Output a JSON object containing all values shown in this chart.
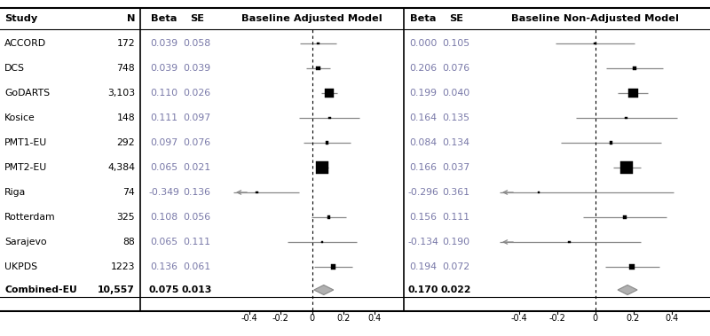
{
  "studies": [
    "ACCORD",
    "DCS",
    "GoDARTS",
    "Kosice",
    "PMT1-EU",
    "PMT2-EU",
    "Riga",
    "Rotterdam",
    "Sarajevo",
    "UKPDS",
    "Combined-EU"
  ],
  "n_values": [
    "172",
    "748",
    "3,103",
    "148",
    "292",
    "4,384",
    "74",
    "325",
    "88",
    "1223",
    "10,557"
  ],
  "adj_beta": [
    0.039,
    0.039,
    0.11,
    0.111,
    0.097,
    0.065,
    -0.349,
    0.108,
    0.065,
    0.136,
    0.075
  ],
  "adj_se": [
    0.058,
    0.039,
    0.026,
    0.097,
    0.076,
    0.021,
    0.136,
    0.056,
    0.111,
    0.061,
    0.013
  ],
  "nadj_beta": [
    0.0,
    0.206,
    0.199,
    0.164,
    0.084,
    0.166,
    -0.296,
    0.156,
    -0.134,
    0.194,
    0.17
  ],
  "nadj_se": [
    0.105,
    0.076,
    0.04,
    0.135,
    0.134,
    0.037,
    0.361,
    0.111,
    0.19,
    0.072,
    0.022
  ],
  "adj_beta_str": [
    "0.039",
    "0.039",
    "0.110",
    "0.111",
    "0.097",
    "0.065",
    "-0.349",
    "0.108",
    "0.065",
    "0.136",
    "0.075"
  ],
  "adj_se_str": [
    "0.058",
    "0.039",
    "0.026",
    "0.097",
    "0.076",
    "0.021",
    "0.136",
    "0.056",
    "0.111",
    "0.061",
    "0.013"
  ],
  "nadj_beta_str": [
    "0.000",
    "0.206",
    "0.199",
    "0.164",
    "0.084",
    "0.166",
    "-0.296",
    "0.156",
    "-0.134",
    "0.194",
    "0.170"
  ],
  "nadj_se_str": [
    "0.105",
    "0.076",
    "0.040",
    "0.135",
    "0.134",
    "0.037",
    "0.361",
    "0.111",
    "0.190",
    "0.072",
    "0.022"
  ],
  "n_raw": [
    172,
    748,
    3103,
    148,
    292,
    4384,
    74,
    325,
    88,
    1223,
    10557
  ],
  "xlim": [
    -0.5,
    0.5
  ],
  "xticks": [
    -0.4,
    -0.2,
    0.0,
    0.2,
    0.4
  ],
  "header_study": "Study",
  "header_n": "N",
  "header_beta": "Beta",
  "header_se": "SE",
  "header_adj": "Baseline Adjusted Model",
  "header_nadj": "Baseline Non-Adjusted Model",
  "bg_color": "#ffffff",
  "box_color": "#000000",
  "diamond_color": "#aaaaaa",
  "ci_line_color": "#888888",
  "data_text_color": "#7878a8",
  "combined_text_color": "#000000",
  "header_text_color": "#000000"
}
